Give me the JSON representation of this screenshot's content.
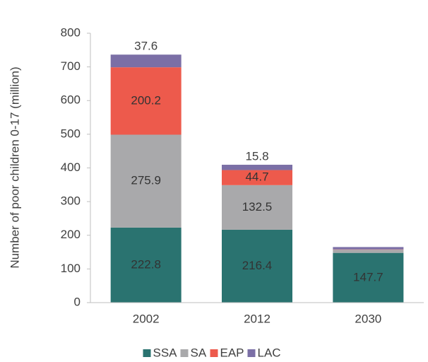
{
  "chart_data": {
    "type": "stacked_bar",
    "y_label": "Number of poor children 0-17 (million)",
    "categories": [
      "2002",
      "2012",
      "2030"
    ],
    "series": [
      {
        "name": "SSA",
        "color": "#2a7370",
        "values": [
          222.8,
          216.4,
          147.7
        ]
      },
      {
        "name": "SA",
        "color": "#a9a9ab",
        "values": [
          275.9,
          132.5,
          9.5
        ]
      },
      {
        "name": "EAP",
        "color": "#ed5a4c",
        "values": [
          200.2,
          44.7,
          0.8
        ]
      },
      {
        "name": "LAC",
        "color": "#7b6fa6",
        "values": [
          37.6,
          15.8,
          7
        ]
      }
    ],
    "ylim": [
      0,
      800
    ],
    "yticks": [
      0,
      100,
      200,
      300,
      400,
      500,
      600,
      700,
      800
    ],
    "legend": "bottom"
  }
}
